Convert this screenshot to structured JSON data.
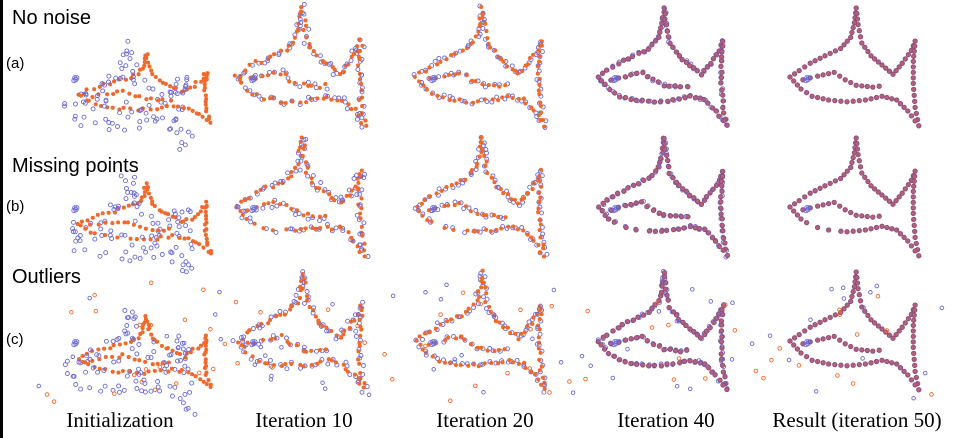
{
  "rows": [
    {
      "title": "No noise",
      "tag": "(a)",
      "key": "none"
    },
    {
      "title": "Missing points",
      "tag": "(b)",
      "key": "missing"
    },
    {
      "title": "Outliers",
      "tag": "(c)",
      "key": "outliers"
    }
  ],
  "columns": [
    {
      "label": "Initialization",
      "stage": "init"
    },
    {
      "label": "Iteration 10",
      "stage": "it10"
    },
    {
      "label": "Iteration 20",
      "stage": "it20"
    },
    {
      "label": "Iteration 40",
      "stage": "it40"
    },
    {
      "label": "Result (iteration 50)",
      "stage": "result"
    }
  ],
  "colors": {
    "source_points": "#ef6a2c",
    "target_points": "#6a6ad6",
    "rule": "#000000"
  }
}
